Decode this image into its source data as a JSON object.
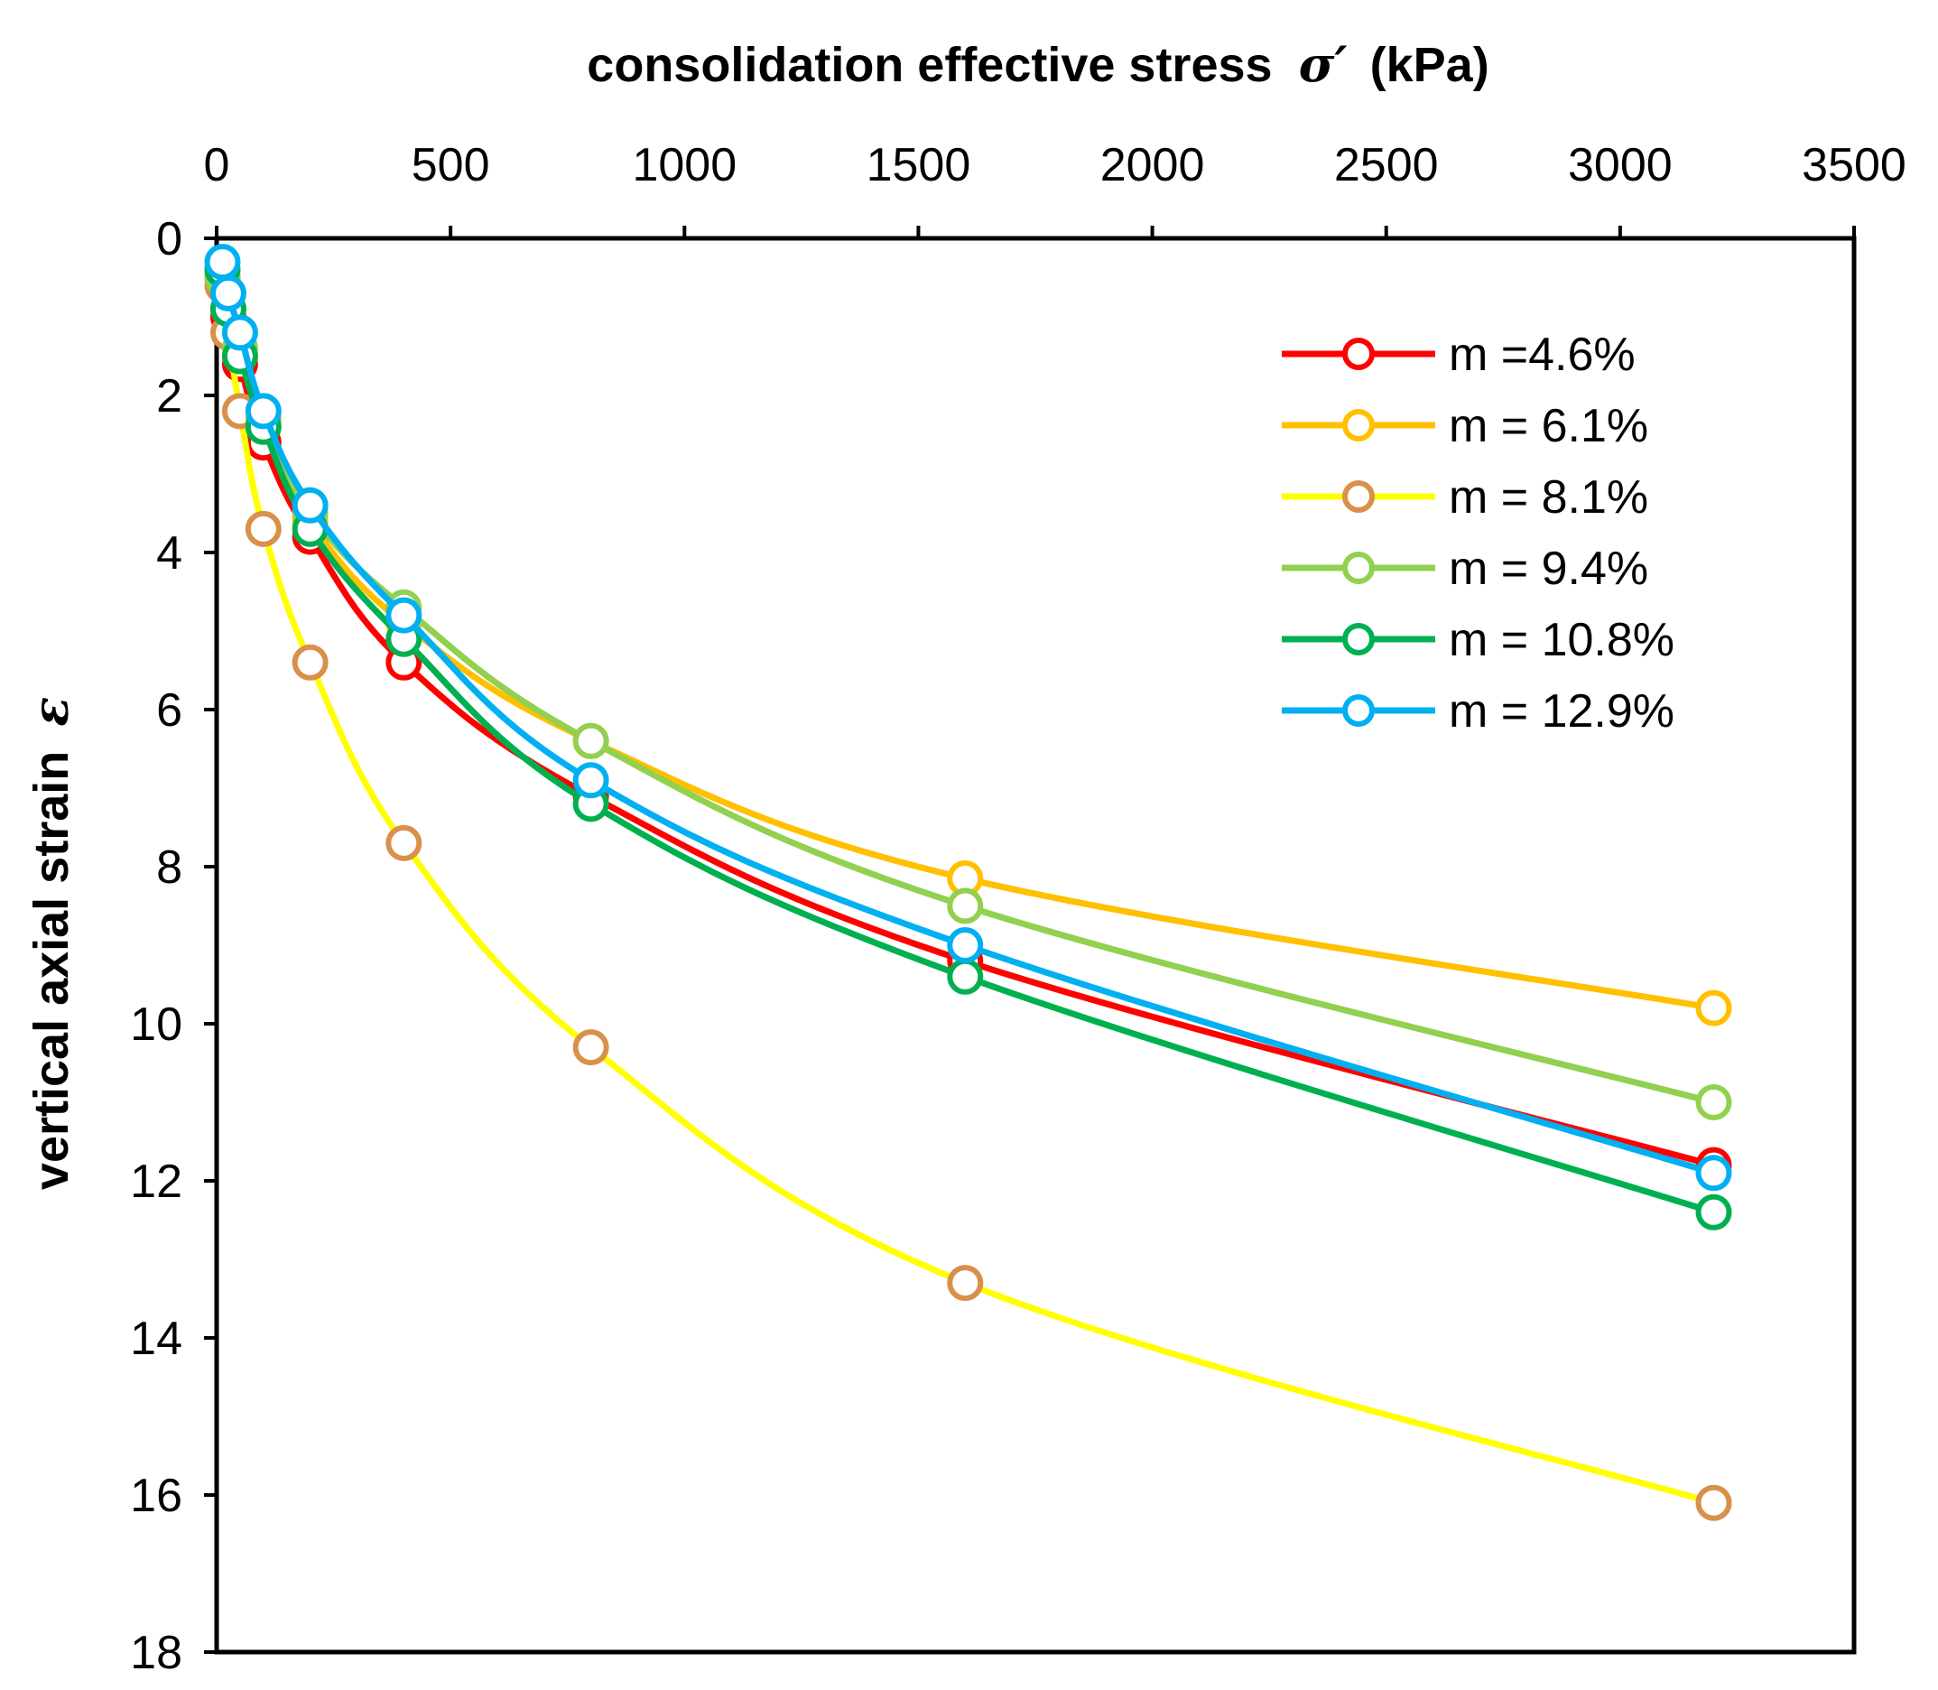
{
  "chart_data": {
    "type": "line",
    "title": "",
    "xlabel": "consolidation effective stress",
    "xlabel_symbol": "σ′",
    "xlabel_unit": "(kPa)",
    "ylabel": "vertical axial strain",
    "ylabel_symbol": "ε",
    "xlim": [
      0,
      3500
    ],
    "ylim": [
      0,
      18
    ],
    "y_inverted": true,
    "x_axis_position": "top",
    "xticks": [
      0,
      500,
      1000,
      1500,
      2000,
      2500,
      3000,
      3500
    ],
    "yticks": [
      0,
      2,
      4,
      6,
      8,
      10,
      12,
      14,
      16,
      18
    ],
    "legend_position": "top-right",
    "x": [
      12.5,
      25,
      50,
      100,
      200,
      400,
      800,
      1600,
      3200
    ],
    "series": [
      {
        "name": "m =4.6%",
        "color": "#ff0000",
        "values": [
          0.5,
          1.0,
          1.6,
          2.6,
          3.8,
          5.4,
          7.1,
          9.2,
          11.8
        ]
      },
      {
        "name": "m = 6.1%",
        "color": "#ffc000",
        "values": [
          0.4,
          0.9,
          1.5,
          2.3,
          3.6,
          4.9,
          6.4,
          8.15,
          9.8
        ]
      },
      {
        "name": "m = 8.1%",
        "color": "#ffff00",
        "marker_color": "#d9904a",
        "values": [
          0.6,
          1.2,
          2.2,
          3.7,
          5.4,
          7.7,
          10.3,
          13.3,
          16.1
        ]
      },
      {
        "name": "m = 9.4%",
        "color": "#92d050",
        "values": [
          0.5,
          0.9,
          1.4,
          2.3,
          3.5,
          4.7,
          6.4,
          8.5,
          11.0
        ]
      },
      {
        "name": "m = 10.8%",
        "color": "#00b050",
        "values": [
          0.4,
          0.9,
          1.5,
          2.4,
          3.7,
          5.1,
          7.2,
          9.4,
          12.4
        ]
      },
      {
        "name": "m = 12.9%",
        "color": "#00b0f0",
        "values": [
          0.3,
          0.7,
          1.2,
          2.2,
          3.4,
          4.8,
          6.9,
          9.0,
          11.9
        ]
      }
    ]
  }
}
